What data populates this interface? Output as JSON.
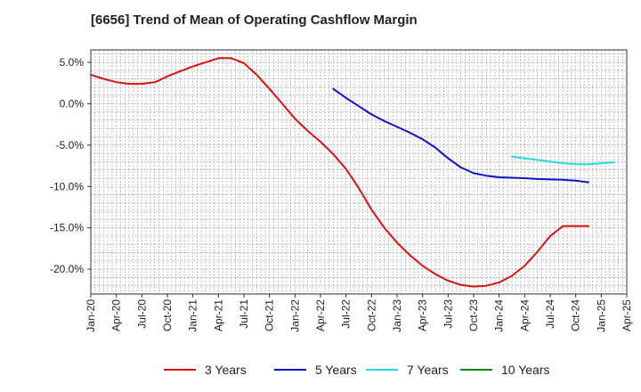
{
  "chart_data": {
    "type": "line",
    "title": "[6656]  Trend of Mean of Operating Cashflow Margin",
    "xlabel": "",
    "ylabel": "",
    "ylim": [
      -23.0,
      6.5
    ],
    "yticks": [
      5,
      0,
      -5,
      -10,
      -15,
      -20
    ],
    "ytick_labels": [
      "5.0%",
      "0.0%",
      "-5.0%",
      "-10.0%",
      "-15.0%",
      "-20.0%"
    ],
    "x_start": "Jan-20",
    "x_end": "Apr-25",
    "x_ticks": [
      "Jan-20",
      "Apr-20",
      "Jul-20",
      "Oct-20",
      "Jan-21",
      "Apr-21",
      "Jul-21",
      "Oct-21",
      "Jan-22",
      "Apr-22",
      "Jul-22",
      "Oct-22",
      "Jan-23",
      "Apr-23",
      "Jul-23",
      "Oct-23",
      "Jan-24",
      "Apr-24",
      "Jul-24",
      "Oct-24",
      "Jan-25",
      "Apr-25"
    ],
    "grid": true,
    "legend_position": "bottom",
    "series": [
      {
        "name": "3 Years",
        "color": "#dd1111",
        "x_index": [
          0,
          3,
          6,
          9,
          12,
          15,
          16,
          18,
          21,
          24,
          27,
          30,
          33,
          36,
          39,
          42,
          45,
          48,
          51,
          54,
          57,
          60,
          63,
          66,
          69,
          72,
          75,
          78,
          81,
          84,
          87,
          90,
          93,
          96,
          99,
          102,
          105,
          108,
          111,
          114,
          117
        ],
        "values": [
          3.5,
          3.0,
          2.6,
          2.4,
          2.4,
          2.6,
          2.8,
          3.3,
          3.9,
          4.5,
          5.0,
          5.5,
          5.5,
          4.9,
          3.5,
          1.8,
          0.0,
          -1.8,
          -3.3,
          -4.6,
          -6.1,
          -7.9,
          -10.2,
          -12.8,
          -15.0,
          -16.8,
          -18.3,
          -19.6,
          -20.6,
          -21.4,
          -21.9,
          -22.1,
          -22.0,
          -21.6,
          -20.8,
          -19.6,
          -17.9,
          -16.0,
          -14.8,
          -14.8,
          -14.8
        ]
      },
      {
        "name": "5 Years",
        "color": "#1111cc",
        "x_index": [
          57,
          60,
          63,
          66,
          69,
          72,
          75,
          78,
          81,
          84,
          87,
          90,
          93,
          96,
          99,
          102,
          105,
          108,
          111,
          114,
          117
        ],
        "values": [
          1.8,
          0.7,
          -0.3,
          -1.3,
          -2.1,
          -2.8,
          -3.5,
          -4.3,
          -5.3,
          -6.6,
          -7.7,
          -8.4,
          -8.7,
          -8.9,
          -8.95,
          -9.0,
          -9.1,
          -9.15,
          -9.2,
          -9.3,
          -9.5
        ]
      },
      {
        "name": "7 Years",
        "color": "#22dddd",
        "x_index": [
          99,
          102,
          105,
          108,
          111,
          114,
          117,
          120,
          123
        ],
        "values": [
          -6.4,
          -6.6,
          -6.8,
          -7.0,
          -7.2,
          -7.3,
          -7.3,
          -7.2,
          -7.1
        ]
      },
      {
        "name": "10 Years",
        "color": "#118811",
        "x_index": [],
        "values": []
      }
    ]
  }
}
